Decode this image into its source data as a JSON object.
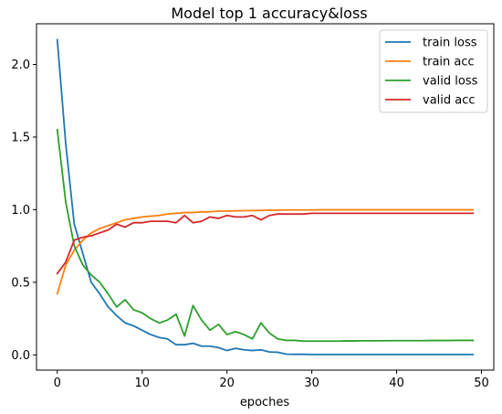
{
  "chart_data": {
    "type": "line",
    "title": "Model top 1 accuracy&loss",
    "xlabel": "epoches",
    "ylabel": "",
    "xlim": [
      -2.45,
      51.45
    ],
    "ylim": [
      -0.105,
      2.28
    ],
    "xticks": [
      0,
      10,
      20,
      30,
      40,
      50
    ],
    "yticks": [
      0.0,
      0.5,
      1.0,
      1.5,
      2.0
    ],
    "xtick_labels": [
      "0",
      "10",
      "20",
      "30",
      "40",
      "50"
    ],
    "ytick_labels": [
      "0.0",
      "0.5",
      "1.0",
      "1.5",
      "2.0"
    ],
    "grid": false,
    "legend_position": "top-right",
    "x": [
      0,
      1,
      2,
      3,
      4,
      5,
      6,
      7,
      8,
      9,
      10,
      11,
      12,
      13,
      14,
      15,
      16,
      17,
      18,
      19,
      20,
      21,
      22,
      23,
      24,
      25,
      26,
      27,
      28,
      29,
      30,
      31,
      32,
      33,
      34,
      35,
      36,
      37,
      38,
      39,
      40,
      41,
      42,
      43,
      44,
      45,
      46,
      47,
      48,
      49
    ],
    "series": [
      {
        "name": "train loss",
        "color": "#1f77b4",
        "values": [
          2.17,
          1.45,
          0.9,
          0.7,
          0.5,
          0.42,
          0.33,
          0.27,
          0.22,
          0.2,
          0.17,
          0.14,
          0.12,
          0.11,
          0.07,
          0.07,
          0.08,
          0.06,
          0.06,
          0.05,
          0.03,
          0.045,
          0.035,
          0.03,
          0.035,
          0.02,
          0.018,
          0.005,
          0.004,
          0.004,
          0.003,
          0.003,
          0.003,
          0.003,
          0.003,
          0.003,
          0.003,
          0.003,
          0.003,
          0.003,
          0.003,
          0.003,
          0.003,
          0.003,
          0.003,
          0.003,
          0.003,
          0.003,
          0.003,
          0.003
        ]
      },
      {
        "name": "train acc",
        "color": "#ff7f0e",
        "values": [
          0.42,
          0.62,
          0.72,
          0.79,
          0.84,
          0.87,
          0.89,
          0.91,
          0.93,
          0.94,
          0.95,
          0.955,
          0.96,
          0.97,
          0.975,
          0.98,
          0.98,
          0.985,
          0.985,
          0.99,
          0.99,
          0.992,
          0.993,
          0.994,
          0.995,
          0.996,
          0.997,
          0.998,
          0.998,
          0.998,
          0.998,
          0.999,
          0.999,
          0.999,
          0.999,
          0.999,
          0.999,
          0.999,
          0.999,
          0.999,
          0.999,
          0.999,
          0.999,
          0.999,
          0.999,
          0.999,
          0.999,
          0.999,
          0.999,
          0.999
        ]
      },
      {
        "name": "valid loss",
        "color": "#2ca02c",
        "values": [
          1.55,
          1.05,
          0.75,
          0.62,
          0.55,
          0.5,
          0.42,
          0.33,
          0.38,
          0.31,
          0.29,
          0.25,
          0.22,
          0.24,
          0.28,
          0.13,
          0.34,
          0.24,
          0.17,
          0.21,
          0.14,
          0.16,
          0.14,
          0.11,
          0.22,
          0.15,
          0.11,
          0.1,
          0.1,
          0.095,
          0.095,
          0.095,
          0.095,
          0.095,
          0.096,
          0.096,
          0.097,
          0.097,
          0.097,
          0.098,
          0.098,
          0.098,
          0.098,
          0.098,
          0.099,
          0.099,
          0.099,
          0.1,
          0.1,
          0.1
        ]
      },
      {
        "name": "valid acc",
        "color": "#d62728",
        "values": [
          0.56,
          0.64,
          0.79,
          0.81,
          0.82,
          0.84,
          0.86,
          0.9,
          0.88,
          0.91,
          0.91,
          0.92,
          0.92,
          0.92,
          0.91,
          0.96,
          0.91,
          0.92,
          0.95,
          0.94,
          0.96,
          0.95,
          0.95,
          0.96,
          0.93,
          0.96,
          0.97,
          0.97,
          0.97,
          0.97,
          0.975,
          0.975,
          0.975,
          0.975,
          0.975,
          0.975,
          0.975,
          0.975,
          0.975,
          0.975,
          0.975,
          0.975,
          0.975,
          0.975,
          0.975,
          0.975,
          0.975,
          0.975,
          0.975,
          0.975
        ]
      }
    ]
  }
}
